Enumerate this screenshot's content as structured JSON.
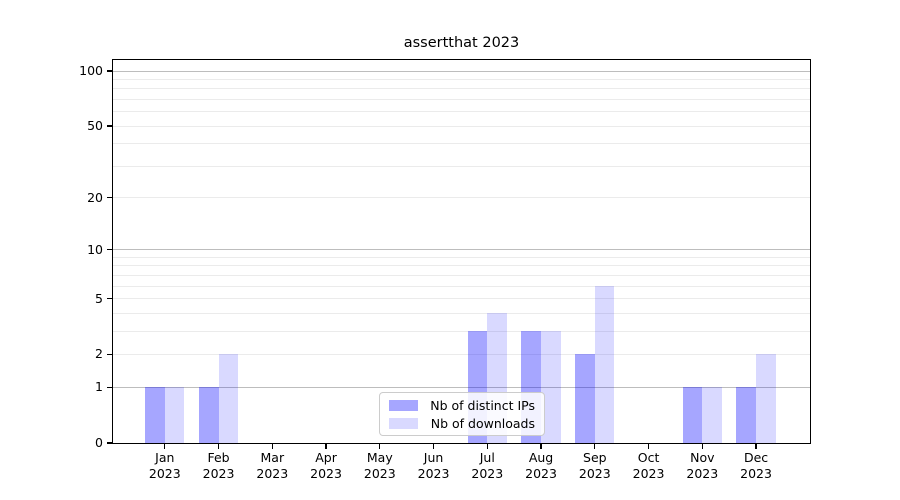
{
  "chart_data": {
    "type": "bar",
    "title": "assertthat 2023",
    "categories": [
      {
        "month": "Jan",
        "year": "2023"
      },
      {
        "month": "Feb",
        "year": "2023"
      },
      {
        "month": "Mar",
        "year": "2023"
      },
      {
        "month": "Apr",
        "year": "2023"
      },
      {
        "month": "May",
        "year": "2023"
      },
      {
        "month": "Jun",
        "year": "2023"
      },
      {
        "month": "Jul",
        "year": "2023"
      },
      {
        "month": "Aug",
        "year": "2023"
      },
      {
        "month": "Sep",
        "year": "2023"
      },
      {
        "month": "Oct",
        "year": "2023"
      },
      {
        "month": "Nov",
        "year": "2023"
      },
      {
        "month": "Dec",
        "year": "2023"
      }
    ],
    "series": [
      {
        "name": "Nb of distinct IPs",
        "color": "rgba(0,0,255,0.35)",
        "values": [
          1,
          1,
          0,
          0,
          0,
          0,
          3,
          3,
          2,
          0,
          1,
          1
        ]
      },
      {
        "name": "Nb of downloads",
        "color": "rgba(0,0,255,0.15)",
        "values": [
          1,
          2,
          0,
          0,
          0,
          0,
          4,
          3,
          6,
          0,
          1,
          2
        ]
      }
    ],
    "xlabel": "",
    "ylabel": "",
    "y_scale": "log1p",
    "ylim": [
      0,
      114
    ],
    "y_ticks": [
      0,
      1,
      2,
      5,
      10,
      20,
      50,
      100
    ],
    "grid": {
      "on": true,
      "major_lines": [
        1,
        10,
        100
      ],
      "minor_lines": [
        2,
        3,
        4,
        5,
        6,
        7,
        8,
        9,
        20,
        30,
        40,
        50,
        60,
        70,
        80,
        90
      ],
      "major_color": "#bdbdbd",
      "minor_color": "#ebebeb"
    },
    "legend_position": "lower center"
  }
}
